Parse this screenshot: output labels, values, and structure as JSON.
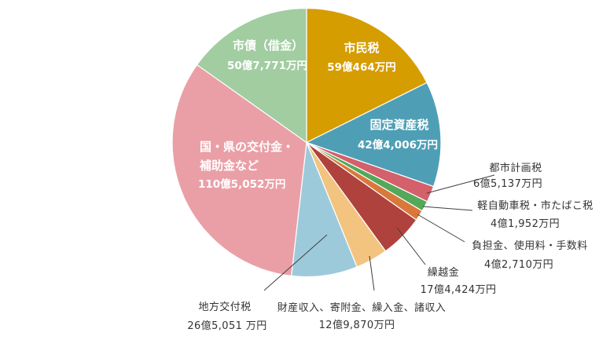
{
  "chart_data": {
    "type": "pie",
    "slices": [
      {
        "label_lines": [
          "市民税"
        ],
        "value_text": "59億464万円",
        "value": 590464,
        "color": "#D59D00"
      },
      {
        "label_lines": [
          "固定資産税"
        ],
        "value_text": "42億4,006万円",
        "value": 424006,
        "color": "#4E9FB6"
      },
      {
        "label_lines": [
          "都市計画税"
        ],
        "value_text": "6億5,137万円",
        "value": 65137,
        "color": "#D3606A"
      },
      {
        "label_lines": [
          "軽自動車税・市たばこ税"
        ],
        "value_text": "4億1,952万円",
        "value": 41952,
        "color": "#55A85A"
      },
      {
        "label_lines": [
          "負担金、使用料・手数料"
        ],
        "value_text": "4億2,710万円",
        "value": 42710,
        "color": "#D9783A"
      },
      {
        "label_lines": [
          "繰越金"
        ],
        "value_text": "17億4,424万円",
        "value": 174424,
        "color": "#AF423D"
      },
      {
        "label_lines": [
          "財産収入、寄附金、繰入金、諸収入"
        ],
        "value_text": "12億9,870万円",
        "value": 129870,
        "color": "#F2C47F"
      },
      {
        "label_lines": [
          "地方交付税"
        ],
        "value_text": "26億5,051 万円",
        "value": 265051,
        "color": "#9DCADB"
      },
      {
        "label_lines": [
          "国・県の交付金・",
          "補助金など"
        ],
        "value_text": "110億5,052万円",
        "value": 1105052,
        "color": "#EA9FA6"
      },
      {
        "label_lines": [
          "市債（借金）"
        ],
        "value_text": "50億7,771万円",
        "value": 507771,
        "color": "#A1CDA1"
      }
    ]
  }
}
